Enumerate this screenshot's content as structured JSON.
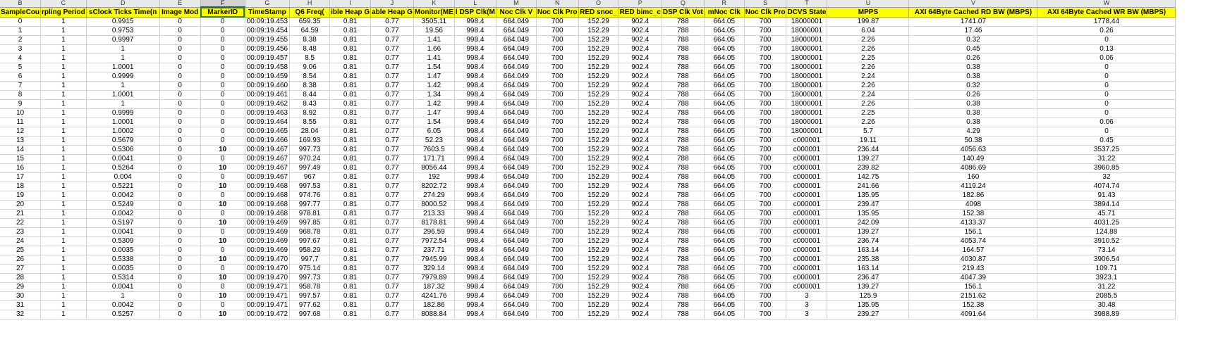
{
  "sheet": {
    "column_letters": [
      "B",
      "C",
      "D",
      "E",
      "F",
      "G",
      "H",
      "I",
      "J",
      "K",
      "L",
      "M",
      "N",
      "O",
      "P",
      "Q",
      "R",
      "S",
      "T",
      "U",
      "V",
      "W"
    ],
    "selected_column": "F",
    "headers": [
      "SampleCou",
      "rpling Period",
      "sClock Ticks Time(n",
      "Image Mod",
      "MarkerID",
      "TimeStamp",
      "Q6 Freq(",
      "ible Heap G",
      "able Heap G",
      "Monitor(ME",
      "l DSP Clk(M",
      "Noc Clk V",
      "Noc Clk Pro",
      "RED snoc_",
      "RED bimc_c",
      "DSP Clk Vot",
      "mNoc Clk",
      "Noc Clk Pro",
      "DCVS State",
      "MPPS",
      "AXI 64Byte Cached RD BW (MBPS)",
      "AXI 64Byte Cached WR BW (MBPS)"
    ],
    "rows": [
      [
        "0",
        "1",
        "0.9915",
        "0",
        "0",
        "00:09:19.453",
        "659.35",
        "0.81",
        "0.77",
        "3505.11",
        "998.4",
        "664.049",
        "700",
        "152.29",
        "902.4",
        "788",
        "664.05",
        "700",
        "18000001",
        "199.87",
        "1741.07",
        "1778.44"
      ],
      [
        "1",
        "1",
        "0.9753",
        "0",
        "0",
        "00:09:19.454",
        "64.59",
        "0.81",
        "0.77",
        "19.56",
        "998.4",
        "664.049",
        "700",
        "152.29",
        "902.4",
        "788",
        "664.05",
        "700",
        "18000001",
        "6.04",
        "17.46",
        "0.26"
      ],
      [
        "2",
        "1",
        "0.9997",
        "0",
        "0",
        "00:09:19.455",
        "8.38",
        "0.81",
        "0.77",
        "1.41",
        "998.4",
        "664.049",
        "700",
        "152.29",
        "902.4",
        "788",
        "664.05",
        "700",
        "18000001",
        "2.26",
        "0.32",
        "0"
      ],
      [
        "3",
        "1",
        "1",
        "0",
        "0",
        "00:09:19.456",
        "8.48",
        "0.81",
        "0.77",
        "1.66",
        "998.4",
        "664.049",
        "700",
        "152.29",
        "902.4",
        "788",
        "664.05",
        "700",
        "18000001",
        "2.26",
        "0.45",
        "0.13"
      ],
      [
        "4",
        "1",
        "1",
        "0",
        "0",
        "00:09:19.457",
        "8.5",
        "0.81",
        "0.77",
        "1.41",
        "998.4",
        "664.049",
        "700",
        "152.29",
        "902.4",
        "788",
        "664.05",
        "700",
        "18000001",
        "2.25",
        "0.26",
        "0.06"
      ],
      [
        "5",
        "1",
        "1.0001",
        "0",
        "0",
        "00:09:19.458",
        "9.06",
        "0.81",
        "0.77",
        "1.54",
        "998.4",
        "664.049",
        "700",
        "152.29",
        "902.4",
        "788",
        "664.05",
        "700",
        "18000001",
        "2.26",
        "0.38",
        "0"
      ],
      [
        "6",
        "1",
        "0.9999",
        "0",
        "0",
        "00:09:19.459",
        "8.54",
        "0.81",
        "0.77",
        "1.47",
        "998.4",
        "664.049",
        "700",
        "152.29",
        "902.4",
        "788",
        "664.05",
        "700",
        "18000001",
        "2.24",
        "0.38",
        "0"
      ],
      [
        "7",
        "1",
        "1",
        "0",
        "0",
        "00:09:19.460",
        "8.38",
        "0.81",
        "0.77",
        "1.42",
        "998.4",
        "664.049",
        "700",
        "152.29",
        "902.4",
        "788",
        "664.05",
        "700",
        "18000001",
        "2.26",
        "0.32",
        "0"
      ],
      [
        "8",
        "1",
        "1.0001",
        "0",
        "0",
        "00:09:19.461",
        "8.44",
        "0.81",
        "0.77",
        "1.34",
        "998.4",
        "664.049",
        "700",
        "152.29",
        "902.4",
        "788",
        "664.05",
        "700",
        "18000001",
        "2.24",
        "0.26",
        "0"
      ],
      [
        "9",
        "1",
        "1",
        "0",
        "0",
        "00:09:19.462",
        "8.43",
        "0.81",
        "0.77",
        "1.42",
        "998.4",
        "664.049",
        "700",
        "152.29",
        "902.4",
        "788",
        "664.05",
        "700",
        "18000001",
        "2.26",
        "0.38",
        "0"
      ],
      [
        "10",
        "1",
        "0.9999",
        "0",
        "0",
        "00:09:19.463",
        "8.92",
        "0.81",
        "0.77",
        "1.47",
        "998.4",
        "664.049",
        "700",
        "152.29",
        "902.4",
        "788",
        "664.05",
        "700",
        "18000001",
        "2.25",
        "0.38",
        "0"
      ],
      [
        "11",
        "1",
        "1.0001",
        "0",
        "0",
        "00:09:19.464",
        "8.55",
        "0.81",
        "0.77",
        "1.54",
        "998.4",
        "664.049",
        "700",
        "152.29",
        "902.4",
        "788",
        "664.05",
        "700",
        "18000001",
        "2.26",
        "0.38",
        "0.06"
      ],
      [
        "12",
        "1",
        "1.0002",
        "0",
        "0",
        "00:09:19.465",
        "28.04",
        "0.81",
        "0.77",
        "6.05",
        "998.4",
        "664.049",
        "700",
        "152.29",
        "902.4",
        "788",
        "664.05",
        "700",
        "18000001",
        "5.7",
        "4.29",
        "0"
      ],
      [
        "13",
        "1",
        "0.5679",
        "0",
        "0",
        "00:09:19.466",
        "169.93",
        "0.81",
        "0.77",
        "52.23",
        "998.4",
        "664.049",
        "700",
        "152.29",
        "902.4",
        "788",
        "664.05",
        "700",
        "c000001",
        "19.11",
        "50.38",
        "0.45"
      ],
      [
        "14",
        "1",
        "0.5306",
        "0",
        "10",
        "00:09:19.467",
        "997.73",
        "0.81",
        "0.77",
        "7603.5",
        "998.4",
        "664.049",
        "700",
        "152.29",
        "902.4",
        "788",
        "664.05",
        "700",
        "c000001",
        "236.44",
        "4056.63",
        "3537.25"
      ],
      [
        "15",
        "1",
        "0.0041",
        "0",
        "0",
        "00:09:19.467",
        "970.24",
        "0.81",
        "0.77",
        "171.71",
        "998.4",
        "664.049",
        "700",
        "152.29",
        "902.4",
        "788",
        "664.05",
        "700",
        "c000001",
        "139.27",
        "140.49",
        "31.22"
      ],
      [
        "16",
        "1",
        "0.5264",
        "0",
        "10",
        "00:09:19.467",
        "997.49",
        "0.81",
        "0.77",
        "8056.44",
        "998.4",
        "664.049",
        "700",
        "152.29",
        "902.4",
        "788",
        "664.05",
        "700",
        "c000001",
        "239.82",
        "4086.69",
        "3960.85"
      ],
      [
        "17",
        "1",
        "0.004",
        "0",
        "0",
        "00:09:19.467",
        "967",
        "0.81",
        "0.77",
        "192",
        "998.4",
        "664.049",
        "700",
        "152.29",
        "902.4",
        "788",
        "664.05",
        "700",
        "c000001",
        "142.75",
        "160",
        "32"
      ],
      [
        "18",
        "1",
        "0.5221",
        "0",
        "10",
        "00:09:19.468",
        "997.53",
        "0.81",
        "0.77",
        "8202.72",
        "998.4",
        "664.049",
        "700",
        "152.29",
        "902.4",
        "788",
        "664.05",
        "700",
        "c000001",
        "241.66",
        "4119.24",
        "4074.74"
      ],
      [
        "19",
        "1",
        "0.0042",
        "0",
        "0",
        "00:09:19.468",
        "974.76",
        "0.81",
        "0.77",
        "274.29",
        "998.4",
        "664.049",
        "700",
        "152.29",
        "902.4",
        "788",
        "664.05",
        "700",
        "c000001",
        "135.95",
        "182.86",
        "91.43"
      ],
      [
        "20",
        "1",
        "0.5249",
        "0",
        "10",
        "00:09:19.468",
        "997.77",
        "0.81",
        "0.77",
        "8000.52",
        "998.4",
        "664.049",
        "700",
        "152.29",
        "902.4",
        "788",
        "664.05",
        "700",
        "c000001",
        "239.47",
        "4098",
        "3894.14"
      ],
      [
        "21",
        "1",
        "0.0042",
        "0",
        "0",
        "00:09:19.468",
        "978.81",
        "0.81",
        "0.77",
        "213.33",
        "998.4",
        "664.049",
        "700",
        "152.29",
        "902.4",
        "788",
        "664.05",
        "700",
        "c000001",
        "135.95",
        "152.38",
        "45.71"
      ],
      [
        "22",
        "1",
        "0.5197",
        "0",
        "10",
        "00:09:19.469",
        "997.85",
        "0.81",
        "0.77",
        "8178.81",
        "998.4",
        "664.049",
        "700",
        "152.29",
        "902.4",
        "788",
        "664.05",
        "700",
        "c000001",
        "242.09",
        "4133.37",
        "4031.25"
      ],
      [
        "23",
        "1",
        "0.0041",
        "0",
        "0",
        "00:09:19.469",
        "968.78",
        "0.81",
        "0.77",
        "296.59",
        "998.4",
        "664.049",
        "700",
        "152.29",
        "902.4",
        "788",
        "664.05",
        "700",
        "c000001",
        "139.27",
        "156.1",
        "124.88"
      ],
      [
        "24",
        "1",
        "0.5309",
        "0",
        "10",
        "00:09:19.469",
        "997.67",
        "0.81",
        "0.77",
        "7972.54",
        "998.4",
        "664.049",
        "700",
        "152.29",
        "902.4",
        "788",
        "664.05",
        "700",
        "c000001",
        "236.74",
        "4053.74",
        "3910.52"
      ],
      [
        "25",
        "1",
        "0.0035",
        "0",
        "0",
        "00:09:19.469",
        "958.29",
        "0.81",
        "0.77",
        "237.71",
        "998.4",
        "664.049",
        "700",
        "152.29",
        "902.4",
        "788",
        "664.05",
        "700",
        "c000001",
        "163.14",
        "164.57",
        "73.14"
      ],
      [
        "26",
        "1",
        "0.5338",
        "0",
        "10",
        "00:09:19.470",
        "997.7",
        "0.81",
        "0.77",
        "7945.99",
        "998.4",
        "664.049",
        "700",
        "152.29",
        "902.4",
        "788",
        "664.05",
        "700",
        "c000001",
        "235.38",
        "4030.87",
        "3906.54"
      ],
      [
        "27",
        "1",
        "0.0035",
        "0",
        "0",
        "00:09:19.470",
        "975.14",
        "0.81",
        "0.77",
        "329.14",
        "998.4",
        "664.049",
        "700",
        "152.29",
        "902.4",
        "788",
        "664.05",
        "700",
        "c000001",
        "163.14",
        "219.43",
        "109.71"
      ],
      [
        "28",
        "1",
        "0.5314",
        "0",
        "10",
        "00:09:19.470",
        "997.73",
        "0.81",
        "0.77",
        "7979.89",
        "998.4",
        "664.049",
        "700",
        "152.29",
        "902.4",
        "788",
        "664.05",
        "700",
        "c000001",
        "236.47",
        "4047.39",
        "3923.1"
      ],
      [
        "29",
        "1",
        "0.0041",
        "0",
        "0",
        "00:09:19.471",
        "958.78",
        "0.81",
        "0.77",
        "187.32",
        "998.4",
        "664.049",
        "700",
        "152.29",
        "902.4",
        "788",
        "664.05",
        "700",
        "c000001",
        "139.27",
        "156.1",
        "31.22"
      ],
      [
        "30",
        "1",
        "1",
        "0",
        "10",
        "00:09:19.471",
        "997.57",
        "0.81",
        "0.77",
        "4241.76",
        "998.4",
        "664.049",
        "700",
        "152.29",
        "902.4",
        "788",
        "664.05",
        "700",
        "3",
        "125.9",
        "2151.62",
        "2085.5"
      ],
      [
        "31",
        "1",
        "0.0042",
        "0",
        "0",
        "00:09:19.471",
        "977.62",
        "0.81",
        "0.77",
        "182.86",
        "998.4",
        "664.049",
        "700",
        "152.29",
        "902.4",
        "788",
        "664.05",
        "700",
        "3",
        "135.95",
        "152.38",
        "30.48"
      ],
      [
        "32",
        "1",
        "0.5257",
        "0",
        "10",
        "00:09:19.472",
        "997.68",
        "0.81",
        "0.77",
        "8088.84",
        "998.4",
        "664.049",
        "700",
        "152.29",
        "902.4",
        "788",
        "664.05",
        "700",
        "3",
        "239.27",
        "4091.64",
        "3988.89"
      ]
    ]
  }
}
